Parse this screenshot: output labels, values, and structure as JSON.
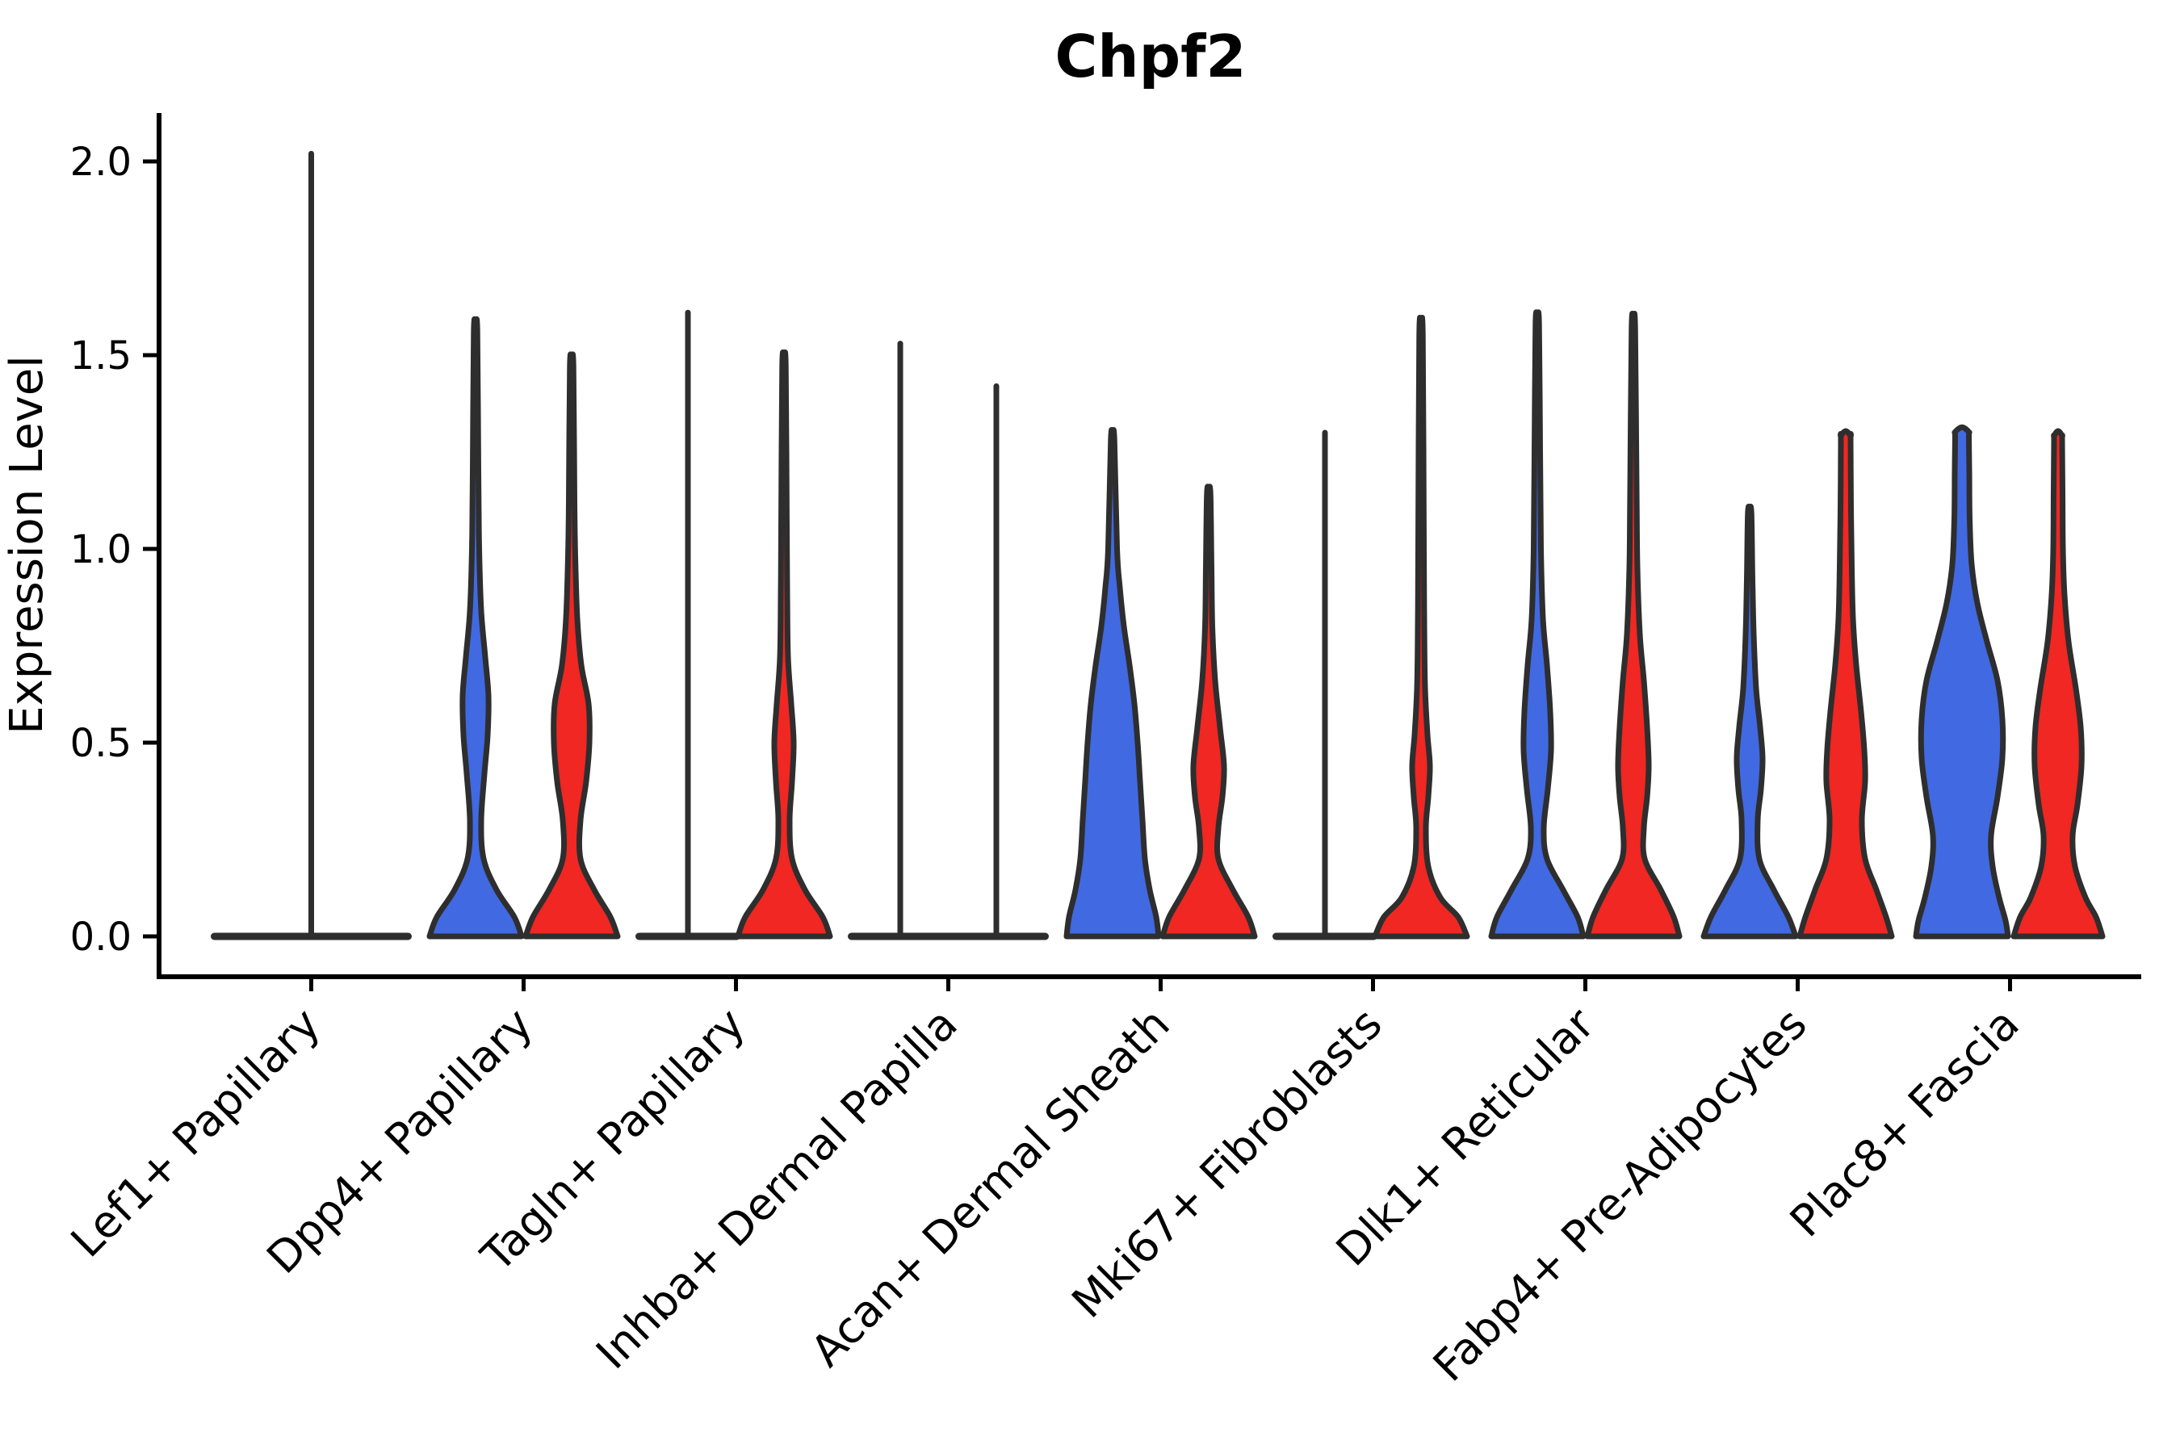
{
  "title": "Chpf2",
  "y_axis": {
    "label": "Expression Level",
    "ticks": [
      "0.0",
      "0.5",
      "1.0",
      "1.5",
      "2.0"
    ],
    "tick_values": [
      0,
      0.5,
      1.0,
      1.5,
      2.0
    ]
  },
  "x_axis": {
    "categories": [
      "Lef1+ Papillary",
      "Dpp4+ Papillary",
      "Tagln+ Papillary",
      "Inhba+ Dermal Papilla",
      "Acan+ Dermal Sheath",
      "Mki67+ Fibroblasts",
      "Dlk1+ Reticular",
      "Fabp4+ Pre-Adipocytes",
      "Plac8+ Fascia"
    ]
  },
  "chart_data": {
    "type": "violin",
    "title": "Chpf2",
    "xlabel": "",
    "ylabel": "Expression Level",
    "ylim": [
      -0.1,
      2.13
    ],
    "yticks": [
      0,
      0.5,
      1.0,
      1.5,
      2.0
    ],
    "grid": false,
    "legend": "none",
    "categories": [
      "Lef1+ Papillary",
      "Dpp4+ Papillary",
      "Tagln+ Papillary",
      "Inhba+ Dermal Papilla",
      "Acan+ Dermal Sheath",
      "Mki67+ Fibroblasts",
      "Dlk1+ Reticular",
      "Fabp4+ Pre-Adipocytes",
      "Plac8+ Fascia"
    ],
    "series": [
      {
        "name": "blue",
        "color": "#4169e1",
        "violins": [
          {
            "category": "Lef1+ Papillary",
            "max": 2.02,
            "shape": "flat",
            "blunt": false,
            "whisker": "center",
            "profile": []
          },
          {
            "category": "Dpp4+ Papillary",
            "max": 1.57,
            "shape": "body",
            "blunt": false,
            "whisker": "self",
            "profile": [
              [
                0,
                57
              ],
              [
                0.05,
                48
              ],
              [
                0.12,
                26
              ],
              [
                0.2,
                10
              ],
              [
                0.3,
                7
              ],
              [
                0.42,
                11
              ],
              [
                0.52,
                15
              ],
              [
                0.62,
                16
              ],
              [
                0.72,
                12
              ],
              [
                0.84,
                7
              ],
              [
                1.0,
                4.5
              ],
              [
                1.2,
                3.5
              ]
            ]
          },
          {
            "category": "Tagln+ Papillary",
            "max": 1.61,
            "shape": "flat",
            "blunt": false,
            "whisker": "self",
            "profile": []
          },
          {
            "category": "Inhba+ Dermal Papilla",
            "max": 1.53,
            "shape": "flat",
            "blunt": false,
            "whisker": "self",
            "profile": []
          },
          {
            "category": "Acan+ Dermal Sheath",
            "max": 1.29,
            "shape": "body",
            "blunt": false,
            "whisker": "self",
            "profile": [
              [
                0,
                57
              ],
              [
                0.05,
                54
              ],
              [
                0.12,
                46
              ],
              [
                0.2,
                40
              ],
              [
                0.3,
                37
              ],
              [
                0.4,
                34
              ],
              [
                0.5,
                31
              ],
              [
                0.6,
                27
              ],
              [
                0.7,
                21
              ],
              [
                0.8,
                14
              ],
              [
                0.9,
                9
              ],
              [
                1.0,
                5.5
              ]
            ]
          },
          {
            "category": "Mki67+ Fibroblasts",
            "max": 1.3,
            "shape": "flat",
            "blunt": false,
            "whisker": "self",
            "profile": []
          },
          {
            "category": "Dlk1+ Reticular",
            "max": 1.59,
            "shape": "body",
            "blunt": false,
            "whisker": "self",
            "profile": [
              [
                0,
                57
              ],
              [
                0.05,
                50
              ],
              [
                0.12,
                32
              ],
              [
                0.2,
                12
              ],
              [
                0.28,
                8
              ],
              [
                0.38,
                13
              ],
              [
                0.48,
                17
              ],
              [
                0.58,
                16
              ],
              [
                0.7,
                12
              ],
              [
                0.82,
                7
              ],
              [
                1.0,
                4.5
              ],
              [
                1.25,
                3.5
              ]
            ]
          },
          {
            "category": "Fabp4+ Pre-Adipocytes",
            "max": 1.1,
            "shape": "body",
            "blunt": false,
            "whisker": "self",
            "profile": [
              [
                0,
                57
              ],
              [
                0.05,
                48
              ],
              [
                0.12,
                30
              ],
              [
                0.2,
                12
              ],
              [
                0.3,
                10
              ],
              [
                0.38,
                14
              ],
              [
                0.46,
                16
              ],
              [
                0.54,
                13
              ],
              [
                0.64,
                8
              ],
              [
                0.78,
                5
              ],
              [
                0.92,
                3.5
              ]
            ]
          },
          {
            "category": "Plac8+ Fascia",
            "max": 1.31,
            "shape": "body",
            "blunt": true,
            "whisker": "none",
            "profile": [
              [
                0,
                57
              ],
              [
                0.04,
                54
              ],
              [
                0.1,
                46
              ],
              [
                0.18,
                38
              ],
              [
                0.26,
                36
              ],
              [
                0.36,
                44
              ],
              [
                0.46,
                50
              ],
              [
                0.56,
                50
              ],
              [
                0.66,
                44
              ],
              [
                0.76,
                31
              ],
              [
                0.86,
                19
              ],
              [
                0.96,
                12
              ],
              [
                1.08,
                9.5
              ],
              [
                1.2,
                9
              ],
              [
                1.29,
                8.5
              ]
            ]
          }
        ]
      },
      {
        "name": "red",
        "color": "#f02722",
        "violins": [
          {
            "category": "Lef1+ Papillary",
            "max": 0,
            "shape": "flat",
            "blunt": false,
            "whisker": "none",
            "profile": []
          },
          {
            "category": "Dpp4+ Papillary",
            "max": 1.48,
            "shape": "body",
            "blunt": false,
            "whisker": "self",
            "profile": [
              [
                0,
                57
              ],
              [
                0.05,
                48
              ],
              [
                0.12,
                28
              ],
              [
                0.2,
                11
              ],
              [
                0.3,
                11
              ],
              [
                0.4,
                18
              ],
              [
                0.5,
                22
              ],
              [
                0.6,
                21
              ],
              [
                0.7,
                12
              ],
              [
                0.82,
                7
              ],
              [
                0.98,
                4.5
              ],
              [
                1.12,
                3.5
              ]
            ]
          },
          {
            "category": "Tagln+ Papillary",
            "max": 1.48,
            "shape": "body",
            "blunt": false,
            "whisker": "self",
            "profile": [
              [
                0,
                57
              ],
              [
                0.05,
                48
              ],
              [
                0.12,
                26
              ],
              [
                0.2,
                10
              ],
              [
                0.3,
                7
              ],
              [
                0.4,
                10
              ],
              [
                0.5,
                12
              ],
              [
                0.6,
                9
              ],
              [
                0.72,
                5
              ],
              [
                0.88,
                4
              ],
              [
                1.05,
                3.5
              ]
            ]
          },
          {
            "category": "Inhba+ Dermal Papilla",
            "max": 1.42,
            "shape": "flat",
            "blunt": false,
            "whisker": "self",
            "profile": []
          },
          {
            "category": "Acan+ Dermal Sheath",
            "max": 1.15,
            "shape": "body",
            "blunt": false,
            "whisker": "self",
            "profile": [
              [
                0,
                57
              ],
              [
                0.05,
                49
              ],
              [
                0.12,
                30
              ],
              [
                0.2,
                12
              ],
              [
                0.28,
                12
              ],
              [
                0.36,
                17
              ],
              [
                0.44,
                19
              ],
              [
                0.54,
                14
              ],
              [
                0.66,
                8
              ],
              [
                0.8,
                4.5
              ],
              [
                0.95,
                3.5
              ]
            ]
          },
          {
            "category": "Mki67+ Fibroblasts",
            "max": 1.56,
            "shape": "body",
            "blunt": false,
            "whisker": "self",
            "profile": [
              [
                0,
                57
              ],
              [
                0.05,
                46
              ],
              [
                0.1,
                24
              ],
              [
                0.18,
                9
              ],
              [
                0.28,
                6
              ],
              [
                0.36,
                9
              ],
              [
                0.44,
                11
              ],
              [
                0.52,
                8
              ],
              [
                0.64,
                5
              ],
              [
                0.8,
                4
              ],
              [
                1.0,
                3.5
              ]
            ]
          },
          {
            "category": "Dlk1+ Reticular",
            "max": 1.58,
            "shape": "body",
            "blunt": false,
            "whisker": "self",
            "profile": [
              [
                0,
                57
              ],
              [
                0.05,
                50
              ],
              [
                0.12,
                34
              ],
              [
                0.2,
                14
              ],
              [
                0.28,
                13
              ],
              [
                0.36,
                17
              ],
              [
                0.44,
                19
              ],
              [
                0.54,
                17
              ],
              [
                0.66,
                13
              ],
              [
                0.78,
                8
              ],
              [
                0.95,
                5
              ],
              [
                1.15,
                4
              ]
            ]
          },
          {
            "category": "Fabp4+ Pre-Adipocytes",
            "max": 1.3,
            "shape": "body",
            "blunt": true,
            "whisker": "none",
            "profile": [
              [
                0,
                57
              ],
              [
                0.05,
                50
              ],
              [
                0.12,
                38
              ],
              [
                0.2,
                24
              ],
              [
                0.3,
                20
              ],
              [
                0.4,
                24
              ],
              [
                0.48,
                23
              ],
              [
                0.58,
                19
              ],
              [
                0.7,
                13
              ],
              [
                0.82,
                9
              ],
              [
                0.95,
                7.5
              ],
              [
                1.1,
                6.5
              ],
              [
                1.28,
                6
              ]
            ]
          },
          {
            "category": "Plac8+ Fascia",
            "max": 1.3,
            "shape": "body",
            "blunt": true,
            "whisker": "none",
            "profile": [
              [
                0,
                55
              ],
              [
                0.05,
                47
              ],
              [
                0.1,
                34
              ],
              [
                0.18,
                21
              ],
              [
                0.26,
                18
              ],
              [
                0.34,
                24
              ],
              [
                0.44,
                29
              ],
              [
                0.54,
                28
              ],
              [
                0.64,
                22
              ],
              [
                0.76,
                13
              ],
              [
                0.88,
                8
              ],
              [
                1.0,
                6
              ],
              [
                1.15,
                5.5
              ],
              [
                1.28,
                5
              ]
            ]
          }
        ]
      }
    ]
  }
}
